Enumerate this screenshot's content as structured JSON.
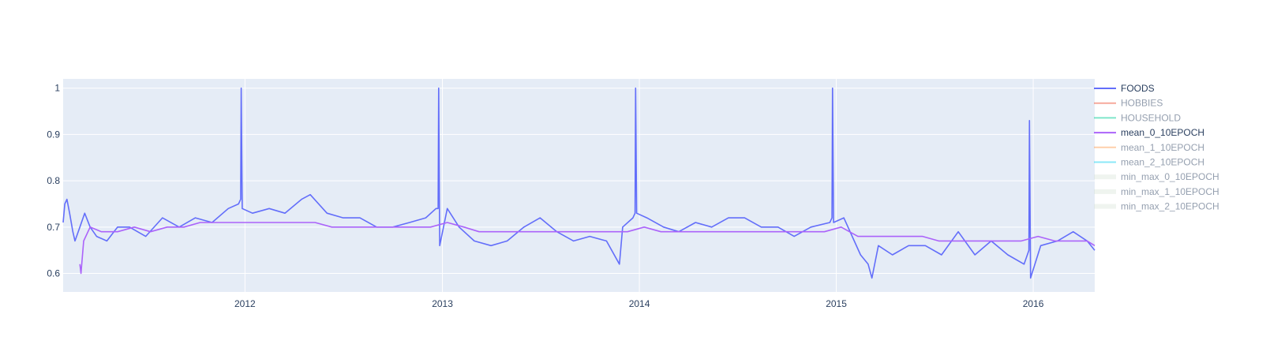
{
  "chart_data": {
    "type": "line",
    "x_axis": {
      "type": "date",
      "range": [
        "2011-01-29",
        "2016-04-24"
      ],
      "ticks": [
        "2012",
        "2013",
        "2014",
        "2015",
        "2016"
      ]
    },
    "y_axis": {
      "range": [
        0.56,
        1.02
      ],
      "ticks": [
        "0.6",
        "0.7",
        "0.8",
        "0.9",
        "1"
      ]
    },
    "grid": true,
    "legend": "right",
    "series": [
      {
        "name": "FOODS",
        "color": "#636efa",
        "visible": true,
        "kind": "line",
        "points": [
          [
            "2011-01-29",
            0.71
          ],
          [
            "2011-02-01",
            0.75
          ],
          [
            "2011-02-05",
            0.76
          ],
          [
            "2011-02-10",
            0.73
          ],
          [
            "2011-02-16",
            0.69
          ],
          [
            "2011-02-20",
            0.67
          ],
          [
            "2011-03-01",
            0.7
          ],
          [
            "2011-03-10",
            0.73
          ],
          [
            "2011-03-20",
            0.7
          ],
          [
            "2011-04-01",
            0.68
          ],
          [
            "2011-04-20",
            0.67
          ],
          [
            "2011-05-10",
            0.7
          ],
          [
            "2011-06-01",
            0.7
          ],
          [
            "2011-07-01",
            0.68
          ],
          [
            "2011-08-01",
            0.72
          ],
          [
            "2011-09-01",
            0.7
          ],
          [
            "2011-10-01",
            0.72
          ],
          [
            "2011-11-01",
            0.71
          ],
          [
            "2011-12-01",
            0.74
          ],
          [
            "2011-12-20",
            0.75
          ],
          [
            "2011-12-24",
            0.76
          ],
          [
            "2011-12-25",
            1.0
          ],
          [
            "2011-12-27",
            0.74
          ],
          [
            "2012-01-15",
            0.73
          ],
          [
            "2012-02-15",
            0.74
          ],
          [
            "2012-03-15",
            0.73
          ],
          [
            "2012-04-15",
            0.76
          ],
          [
            "2012-05-01",
            0.77
          ],
          [
            "2012-06-01",
            0.73
          ],
          [
            "2012-07-01",
            0.72
          ],
          [
            "2012-08-01",
            0.72
          ],
          [
            "2012-09-01",
            0.7
          ],
          [
            "2012-10-01",
            0.7
          ],
          [
            "2012-11-01",
            0.71
          ],
          [
            "2012-12-01",
            0.72
          ],
          [
            "2012-12-20",
            0.74
          ],
          [
            "2012-12-24",
            0.74
          ],
          [
            "2012-12-25",
            1.0
          ],
          [
            "2012-12-27",
            0.66
          ],
          [
            "2013-01-10",
            0.74
          ],
          [
            "2013-02-01",
            0.7
          ],
          [
            "2013-03-01",
            0.67
          ],
          [
            "2013-04-01",
            0.66
          ],
          [
            "2013-05-01",
            0.67
          ],
          [
            "2013-06-01",
            0.7
          ],
          [
            "2013-07-01",
            0.72
          ],
          [
            "2013-08-01",
            0.69
          ],
          [
            "2013-09-01",
            0.67
          ],
          [
            "2013-10-01",
            0.68
          ],
          [
            "2013-11-01",
            0.67
          ],
          [
            "2013-11-25",
            0.62
          ],
          [
            "2013-12-01",
            0.7
          ],
          [
            "2013-12-20",
            0.72
          ],
          [
            "2013-12-24",
            0.73
          ],
          [
            "2013-12-25",
            1.0
          ],
          [
            "2013-12-27",
            0.73
          ],
          [
            "2014-01-15",
            0.72
          ],
          [
            "2014-02-15",
            0.7
          ],
          [
            "2014-03-15",
            0.69
          ],
          [
            "2014-04-15",
            0.71
          ],
          [
            "2014-05-15",
            0.7
          ],
          [
            "2014-06-15",
            0.72
          ],
          [
            "2014-07-15",
            0.72
          ],
          [
            "2014-08-15",
            0.7
          ],
          [
            "2014-09-15",
            0.7
          ],
          [
            "2014-10-15",
            0.68
          ],
          [
            "2014-11-15",
            0.7
          ],
          [
            "2014-12-20",
            0.71
          ],
          [
            "2014-12-24",
            0.72
          ],
          [
            "2014-12-25",
            1.0
          ],
          [
            "2014-12-27",
            0.71
          ],
          [
            "2015-01-15",
            0.72
          ],
          [
            "2015-02-15",
            0.64
          ],
          [
            "2015-03-01",
            0.62
          ],
          [
            "2015-03-08",
            0.59
          ],
          [
            "2015-03-20",
            0.66
          ],
          [
            "2015-04-15",
            0.64
          ],
          [
            "2015-05-15",
            0.66
          ],
          [
            "2015-06-15",
            0.66
          ],
          [
            "2015-07-15",
            0.64
          ],
          [
            "2015-08-15",
            0.69
          ],
          [
            "2015-09-15",
            0.64
          ],
          [
            "2015-10-15",
            0.67
          ],
          [
            "2015-11-15",
            0.64
          ],
          [
            "2015-12-15",
            0.62
          ],
          [
            "2015-12-24",
            0.65
          ],
          [
            "2015-12-25",
            0.93
          ],
          [
            "2015-12-27",
            0.59
          ],
          [
            "2016-01-15",
            0.66
          ],
          [
            "2016-02-15",
            0.67
          ],
          [
            "2016-03-15",
            0.69
          ],
          [
            "2016-04-10",
            0.67
          ],
          [
            "2016-04-24",
            0.65
          ]
        ]
      },
      {
        "name": "HOBBIES",
        "color": "#ef553b",
        "visible": false,
        "kind": "line"
      },
      {
        "name": "HOUSEHOLD",
        "color": "#00cc96",
        "visible": false,
        "kind": "line"
      },
      {
        "name": "mean_0_10EPOCH",
        "color": "#ab63fa",
        "visible": true,
        "kind": "line",
        "points": [
          [
            "2011-03-01",
            0.62
          ],
          [
            "2011-03-03",
            0.6
          ],
          [
            "2011-03-08",
            0.67
          ],
          [
            "2011-03-20",
            0.7
          ],
          [
            "2011-04-10",
            0.69
          ],
          [
            "2011-05-10",
            0.69
          ],
          [
            "2011-06-10",
            0.7
          ],
          [
            "2011-07-10",
            0.69
          ],
          [
            "2011-08-10",
            0.7
          ],
          [
            "2011-09-10",
            0.7
          ],
          [
            "2011-10-10",
            0.71
          ],
          [
            "2011-11-10",
            0.71
          ],
          [
            "2011-12-10",
            0.71
          ],
          [
            "2012-01-10",
            0.71
          ],
          [
            "2012-02-10",
            0.71
          ],
          [
            "2012-03-10",
            0.71
          ],
          [
            "2012-04-10",
            0.71
          ],
          [
            "2012-05-10",
            0.71
          ],
          [
            "2012-06-10",
            0.7
          ],
          [
            "2012-07-10",
            0.7
          ],
          [
            "2012-08-10",
            0.7
          ],
          [
            "2012-09-10",
            0.7
          ],
          [
            "2012-10-10",
            0.7
          ],
          [
            "2012-11-10",
            0.7
          ],
          [
            "2012-12-10",
            0.7
          ],
          [
            "2013-01-10",
            0.71
          ],
          [
            "2013-02-10",
            0.7
          ],
          [
            "2013-03-10",
            0.69
          ],
          [
            "2013-04-10",
            0.69
          ],
          [
            "2013-05-10",
            0.69
          ],
          [
            "2013-06-10",
            0.69
          ],
          [
            "2013-07-10",
            0.69
          ],
          [
            "2013-08-10",
            0.69
          ],
          [
            "2013-09-10",
            0.69
          ],
          [
            "2013-10-10",
            0.69
          ],
          [
            "2013-11-10",
            0.69
          ],
          [
            "2013-12-10",
            0.69
          ],
          [
            "2014-01-10",
            0.7
          ],
          [
            "2014-02-10",
            0.69
          ],
          [
            "2014-03-10",
            0.69
          ],
          [
            "2014-04-10",
            0.69
          ],
          [
            "2014-05-10",
            0.69
          ],
          [
            "2014-06-10",
            0.69
          ],
          [
            "2014-07-10",
            0.69
          ],
          [
            "2014-08-10",
            0.69
          ],
          [
            "2014-09-10",
            0.69
          ],
          [
            "2014-10-10",
            0.69
          ],
          [
            "2014-11-10",
            0.69
          ],
          [
            "2014-12-10",
            0.69
          ],
          [
            "2015-01-10",
            0.7
          ],
          [
            "2015-02-10",
            0.68
          ],
          [
            "2015-03-10",
            0.68
          ],
          [
            "2015-04-10",
            0.68
          ],
          [
            "2015-05-10",
            0.68
          ],
          [
            "2015-06-10",
            0.68
          ],
          [
            "2015-07-10",
            0.67
          ],
          [
            "2015-08-10",
            0.67
          ],
          [
            "2015-09-10",
            0.67
          ],
          [
            "2015-10-10",
            0.67
          ],
          [
            "2015-11-10",
            0.67
          ],
          [
            "2015-12-10",
            0.67
          ],
          [
            "2016-01-10",
            0.68
          ],
          [
            "2016-02-10",
            0.67
          ],
          [
            "2016-03-10",
            0.67
          ],
          [
            "2016-04-10",
            0.67
          ],
          [
            "2016-04-24",
            0.66
          ]
        ]
      },
      {
        "name": "mean_1_10EPOCH",
        "color": "#ffa15a",
        "visible": false,
        "kind": "line"
      },
      {
        "name": "mean_2_10EPOCH",
        "color": "#19d3f3",
        "visible": false,
        "kind": "line"
      },
      {
        "name": "min_max_0_10EPOCH",
        "color": "#c9dcc9",
        "visible": false,
        "kind": "band"
      },
      {
        "name": "min_max_1_10EPOCH",
        "color": "#c9dcc9",
        "visible": false,
        "kind": "band"
      },
      {
        "name": "min_max_2_10EPOCH",
        "color": "#c9dcc9",
        "visible": false,
        "kind": "band"
      }
    ]
  }
}
